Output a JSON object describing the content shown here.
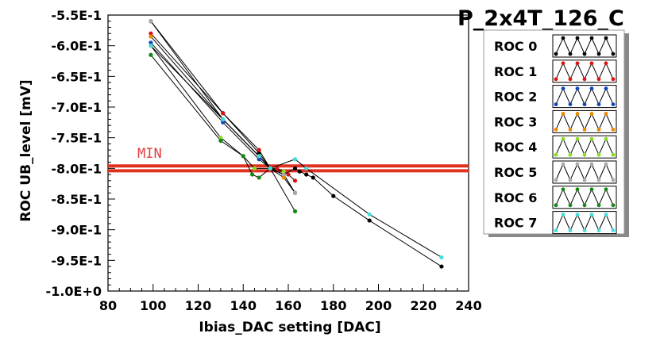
{
  "chart_data": {
    "type": "line",
    "title": "P_2x4T_126_C",
    "xlabel": "Ibias_DAC setting [DAC]",
    "ylabel": "ROC UB_level [mV]",
    "xlim": [
      80,
      240
    ],
    "ylim": [
      -1.0,
      -0.55
    ],
    "x_ticks": [
      80,
      100,
      120,
      140,
      160,
      180,
      200,
      220,
      240
    ],
    "x_tick_labels": [
      "80",
      "100",
      "120",
      "140",
      "160",
      "180",
      "200",
      "220",
      "240"
    ],
    "y_ticks": [
      -0.55,
      -0.6,
      -0.65,
      -0.7,
      -0.75,
      -0.8,
      -0.85,
      -0.9,
      -0.95,
      -1.0
    ],
    "y_tick_labels": [
      "-5.5E-1",
      "-6.0E-1",
      "-6.5E-1",
      "-7.0E-1",
      "-7.5E-1",
      "-8.0E-1",
      "-8.5E-1",
      "-9.0E-1",
      "-9.5E-1",
      "-1.0E+0"
    ],
    "grid": false,
    "legend_position": "right",
    "min_line": {
      "label": "MIN",
      "y": -0.8,
      "band": [
        -0.796,
        -0.804
      ],
      "color": "#e03020"
    },
    "series": [
      {
        "name": "ROC 0",
        "color": "#000000",
        "x": [
          99,
          131,
          147,
          152,
          158,
          163,
          165,
          168,
          171,
          180,
          196,
          228
        ],
        "y": [
          -0.56,
          -0.71,
          -0.775,
          -0.8,
          -0.81,
          -0.8,
          -0.805,
          -0.81,
          -0.815,
          -0.845,
          -0.885,
          -0.96
        ]
      },
      {
        "name": "ROC 1",
        "color": "#dd1111",
        "x": [
          99,
          131,
          147,
          152,
          155,
          158,
          160,
          163
        ],
        "y": [
          -0.58,
          -0.71,
          -0.77,
          -0.8,
          -0.8,
          -0.805,
          -0.81,
          -0.82
        ]
      },
      {
        "name": "ROC 2",
        "color": "#1144bb",
        "x": [
          99,
          131,
          147,
          152,
          158,
          163
        ],
        "y": [
          -0.595,
          -0.725,
          -0.785,
          -0.8,
          -0.81,
          -0.84
        ]
      },
      {
        "name": "ROC 3",
        "color": "#ee8800",
        "x": [
          99,
          131,
          147,
          152,
          158,
          163
        ],
        "y": [
          -0.585,
          -0.72,
          -0.78,
          -0.8,
          -0.815,
          -0.84
        ]
      },
      {
        "name": "ROC 4",
        "color": "#88dd22",
        "x": [
          99,
          130,
          140,
          145,
          152,
          158
        ],
        "y": [
          -0.6,
          -0.75,
          -0.78,
          -0.8,
          -0.8,
          -0.805
        ]
      },
      {
        "name": "ROC 5",
        "color": "#aaaaaa",
        "x": [
          99,
          131,
          147,
          152,
          158,
          163
        ],
        "y": [
          -0.56,
          -0.72,
          -0.78,
          -0.8,
          -0.81,
          -0.84
        ]
      },
      {
        "name": "ROC 6",
        "color": "#118811",
        "x": [
          99,
          130,
          140,
          144,
          147,
          152,
          163
        ],
        "y": [
          -0.615,
          -0.755,
          -0.78,
          -0.81,
          -0.815,
          -0.8,
          -0.87
        ]
      },
      {
        "name": "ROC 7",
        "color": "#44dddd",
        "x": [
          99,
          131,
          147,
          152,
          163,
          168,
          196,
          228
        ],
        "y": [
          -0.6,
          -0.72,
          -0.78,
          -0.8,
          -0.785,
          -0.8,
          -0.875,
          -0.945
        ]
      }
    ]
  }
}
